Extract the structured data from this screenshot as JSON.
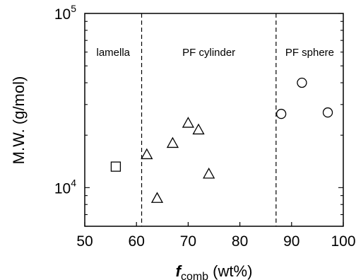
{
  "chart_data": {
    "type": "scatter",
    "xlabel": {
      "prefix": "f",
      "sub": "comb",
      "suffix": " (wt%)"
    },
    "ylabel": "M.W. (g/mol)",
    "xlim": [
      50,
      100
    ],
    "ylim": [
      6000,
      100000
    ],
    "yscale": "log",
    "xticks": [
      "50",
      "60",
      "70",
      "80",
      "90",
      "100"
    ],
    "yticks": [
      {
        "value": 10000,
        "base": "10",
        "exp": "4"
      },
      {
        "value": 100000,
        "base": "10",
        "exp": "5"
      }
    ],
    "vlines": [
      61,
      87
    ],
    "regions": [
      {
        "label": "lamella",
        "x": 55.5
      },
      {
        "label": "PF cylinder",
        "x": 74
      },
      {
        "label": "PF sphere",
        "x": 93.5
      }
    ],
    "series": [
      {
        "marker": "square",
        "points": [
          [
            56,
            13200
          ]
        ]
      },
      {
        "marker": "triangle",
        "points": [
          [
            62,
            15500
          ],
          [
            64,
            8700
          ],
          [
            67,
            18000
          ],
          [
            70,
            23500
          ],
          [
            72,
            21500
          ],
          [
            74,
            12000
          ]
        ]
      },
      {
        "marker": "circle",
        "points": [
          [
            88,
            26500
          ],
          [
            92,
            40000
          ],
          [
            97,
            27000
          ]
        ]
      }
    ],
    "grid": false
  }
}
